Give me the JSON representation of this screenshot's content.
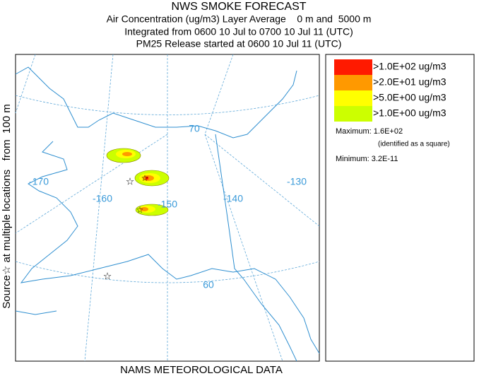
{
  "header": {
    "title": "NWS SMOKE FORECAST",
    "lines": [
      "Air Concentration (ug/m3) Layer Average    0 m and  5000 m",
      "Integrated from 0600 10 Jul to 0700 10 Jul 11 (UTC)",
      "PM25 Release started at 0600 10 Jul 11 (UTC)"
    ]
  },
  "side_label": "Source☆ at multiple locations   from  100 m",
  "footer": "NAMS METEOROLOGICAL DATA",
  "map": {
    "labels": [
      "70",
      "-170",
      "-160",
      "-150",
      "-140",
      "-130",
      "60"
    ]
  },
  "legend": {
    "items": [
      {
        "label": ">1.0E+02 ug/m3",
        "color": "#ff1a00"
      },
      {
        "label": ">2.0E+01 ug/m3",
        "color": "#ff9900"
      },
      {
        "label": ">5.0E+00 ug/m3",
        "color": "#ffff00"
      },
      {
        "label": ">1.0E+00 ug/m3",
        "color": "#ccff00"
      }
    ],
    "maximum": "Maximum: 1.6E+02",
    "maximum_note": "(identified as a square)",
    "minimum": "Minimum: 3.2E-11"
  }
}
